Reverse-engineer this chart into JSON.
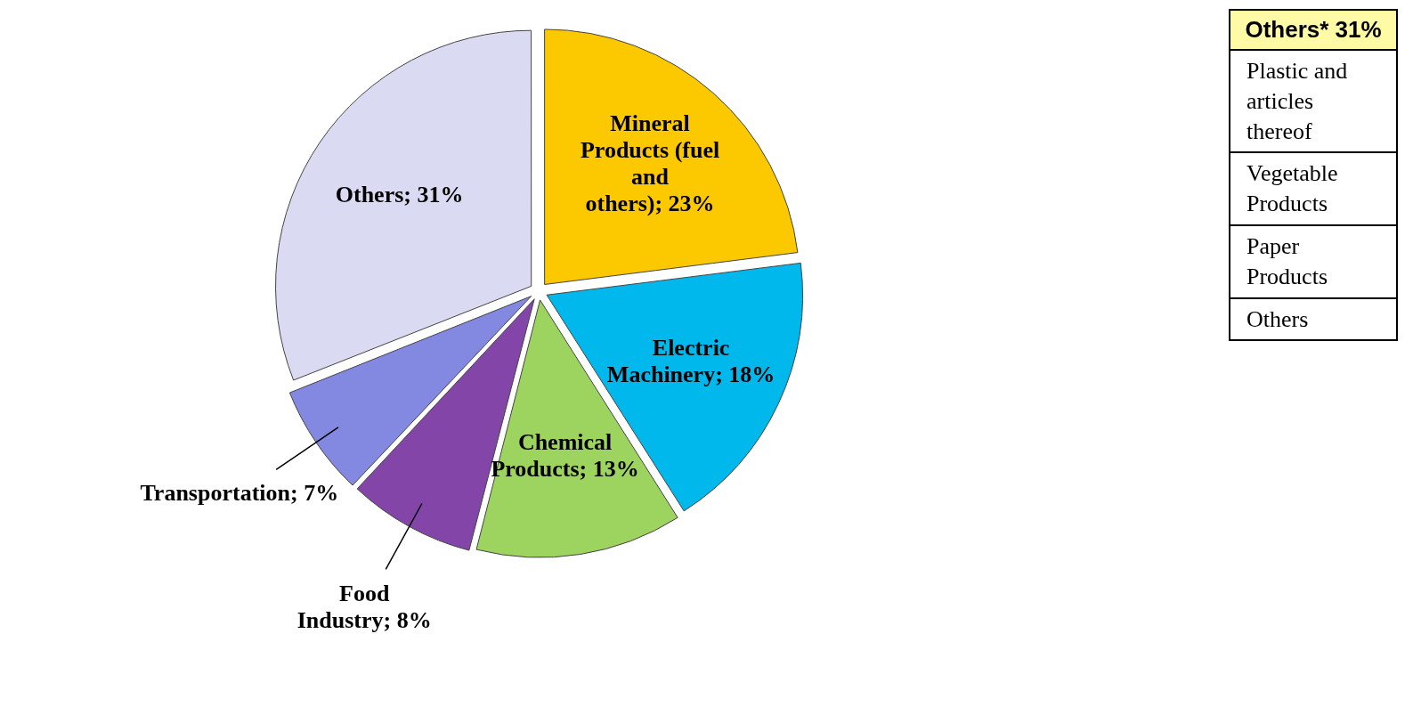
{
  "chart_data": [
    {
      "type": "pie",
      "categories": [
        "Mineral Products (fuel and others)",
        "Electric Machinery",
        "Chemical Products",
        "Food Industry",
        "Transportation",
        "Others"
      ],
      "values": [
        23,
        18,
        13,
        8,
        7,
        31
      ],
      "colors": [
        "#fcc800",
        "#00b8ec",
        "#9dd35f",
        "#8445a9",
        "#8388e0",
        "#dadaf2"
      ],
      "value_labels": [
        "23%",
        "18%",
        "13%",
        "8%",
        "7%",
        "31%"
      ],
      "legend": false
    },
    {
      "type": "other",
      "title": "Others* 31%",
      "annotations": [
        "Plastic and articles thereof",
        "Vegetable Products",
        "Paper Products",
        "Others"
      ]
    }
  ]
}
